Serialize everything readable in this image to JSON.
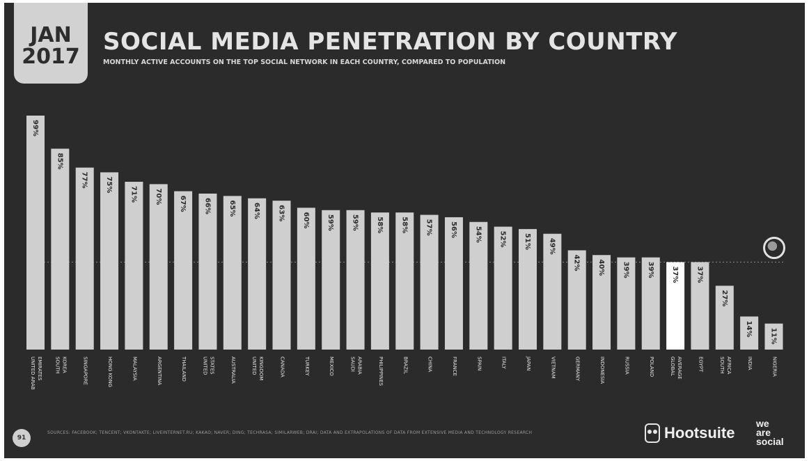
{
  "header": {
    "month": "JAN",
    "year": "2017",
    "title": "SOCIAL MEDIA PENETRATION BY COUNTRY",
    "subtitle": "MONTHLY ACTIVE ACCOUNTS ON THE TOP SOCIAL NETWORK IN EACH COUNTRY, COMPARED TO POPULATION"
  },
  "footer": {
    "page_number": "91",
    "source": "SOURCES: FACEBOOK; TENCENT; VKONTAKTE; LIVEINTERNET.RU; KAKAO; NAVER; DING; TECHRASA; SIMILARWEB; DRAI; DATA AND EXTRAPOLATIONS OF DATA FROM EXTENSIVE MEDIA AND TECHNOLOGY RESEARCH",
    "brand_hootsuite": "Hootsuite",
    "brand_was": [
      "we",
      "are",
      "social"
    ]
  },
  "colors": {
    "background": "#2b2b2b",
    "bar": "#cfcfcf",
    "highlight_bar": "#ffffff",
    "label": "#e6e6e6",
    "value_text": "#2b2b2b"
  },
  "chart_data": {
    "type": "bar",
    "orientation": "vertical",
    "categories": [
      "UNITED ARAB EMIRATES",
      "SOUTH KOREA",
      "SINGAPORE",
      "HONG KONG",
      "MALAYSIA",
      "ARGENTINA",
      "THAILAND",
      "UNITED STATES",
      "AUSTRALIA",
      "UNITED KINGDOM",
      "CANADA",
      "TURKEY",
      "MEXICO",
      "SAUDI ARABIA",
      "PHILIPPINES",
      "BRAZIL",
      "CHINA",
      "FRANCE",
      "SPAIN",
      "ITALY",
      "JAPAN",
      "VIETNAM",
      "GERMANY",
      "INDONESIA",
      "RUSSIA",
      "POLAND",
      "GLOBAL AVERAGE",
      "EGYPT",
      "SOUTH AFRICA",
      "INDIA",
      "NIGERIA"
    ],
    "category_lines": [
      [
        "UNITED ARAB",
        "EMIRATES"
      ],
      [
        "SOUTH",
        "KOREA"
      ],
      [
        "SINGAPORE"
      ],
      [
        "HONG KONG"
      ],
      [
        "MALAYSIA"
      ],
      [
        "ARGENTINA"
      ],
      [
        "THAILAND"
      ],
      [
        "UNITED",
        "STATES"
      ],
      [
        "AUSTRALIA"
      ],
      [
        "UNITED",
        "KINGDOM"
      ],
      [
        "CANADA"
      ],
      [
        "TURKEY"
      ],
      [
        "MEXICO"
      ],
      [
        "SAUDI",
        "ARABIA"
      ],
      [
        "PHILIPPINES"
      ],
      [
        "BRAZIL"
      ],
      [
        "CHINA"
      ],
      [
        "FRANCE"
      ],
      [
        "SPAIN"
      ],
      [
        "ITALY"
      ],
      [
        "JAPAN"
      ],
      [
        "VIETNAM"
      ],
      [
        "GERMANY"
      ],
      [
        "INDONESIA"
      ],
      [
        "RUSSIA"
      ],
      [
        "POLAND"
      ],
      [
        "GLOBAL",
        "AVERAGE"
      ],
      [
        "EGYPT"
      ],
      [
        "SOUTH",
        "AFRICA"
      ],
      [
        "INDIA"
      ],
      [
        "NIGERIA"
      ]
    ],
    "values": [
      99,
      85,
      77,
      75,
      71,
      70,
      67,
      66,
      65,
      64,
      63,
      60,
      59,
      59,
      58,
      58,
      57,
      56,
      54,
      52,
      51,
      49,
      42,
      40,
      39,
      39,
      37,
      37,
      27,
      14,
      11
    ],
    "value_labels": [
      "99%",
      "85%",
      "77%",
      "75%",
      "71%",
      "70%",
      "67%",
      "66%",
      "65%",
      "64%",
      "63%",
      "60%",
      "59%",
      "59%",
      "58%",
      "58%",
      "57%",
      "56%",
      "54%",
      "52%",
      "51%",
      "49%",
      "42%",
      "40%",
      "39%",
      "39%",
      "37%",
      "37%",
      "27%",
      "14%",
      "11%"
    ],
    "highlight_category": "GLOBAL AVERAGE",
    "reference_value": 37,
    "ylim": [
      0,
      100
    ],
    "grid": false,
    "legend": "none"
  }
}
